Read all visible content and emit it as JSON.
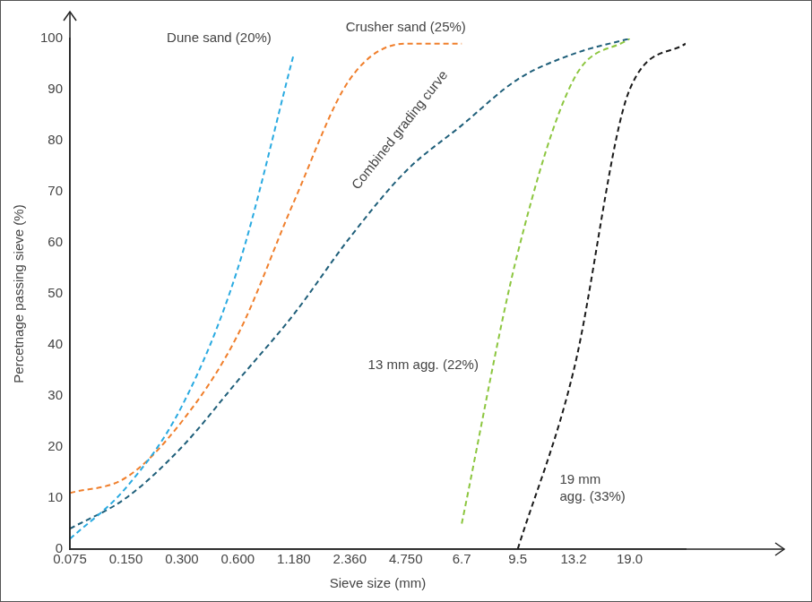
{
  "chart_data": {
    "type": "line",
    "x_label": "Sieve size (mm)",
    "y_label": "Percetnage passing sieve (%)",
    "categories": [
      "0.075",
      "0.150",
      "0.300",
      "0.600",
      "1.180",
      "2.360",
      "4.750",
      "6.7",
      "9.5",
      "13.2",
      "19.0",
      null
    ],
    "series": [
      {
        "name": "Dune sand (20%)",
        "color": "#29aae1",
        "line_style": "dashed",
        "values": [
          2,
          12,
          28,
          55,
          97,
          null,
          null,
          null,
          null,
          null,
          null,
          null
        ]
      },
      {
        "name": "Crusher sand (25%)",
        "color": "#f07f2c",
        "line_style": "dashed",
        "values": [
          11,
          14,
          25,
          42,
          68,
          92,
          99,
          99,
          null,
          null,
          null,
          null
        ]
      },
      {
        "name": "Combined grading curve",
        "color": "#1f5f7a",
        "line_style": "dashed",
        "values": [
          4,
          10,
          20,
          33,
          46,
          61,
          74,
          83,
          92,
          97,
          100,
          null
        ]
      },
      {
        "name": "13 mm agg. (22%)",
        "color": "#8cc63f",
        "line_style": "dashed",
        "values": [
          null,
          null,
          null,
          null,
          null,
          null,
          null,
          5,
          58,
          92,
          100,
          null
        ]
      },
      {
        "name": "19 mm agg. (33%)",
        "color": "#1a1a1a",
        "line_style": "dashed",
        "values": [
          null,
          null,
          null,
          null,
          null,
          null,
          null,
          null,
          0,
          35,
          90,
          99
        ]
      }
    ],
    "ylim": [
      0,
      100
    ],
    "yticks": [
      0,
      10,
      20,
      30,
      40,
      50,
      60,
      70,
      80,
      90,
      100
    ],
    "grid": false
  }
}
